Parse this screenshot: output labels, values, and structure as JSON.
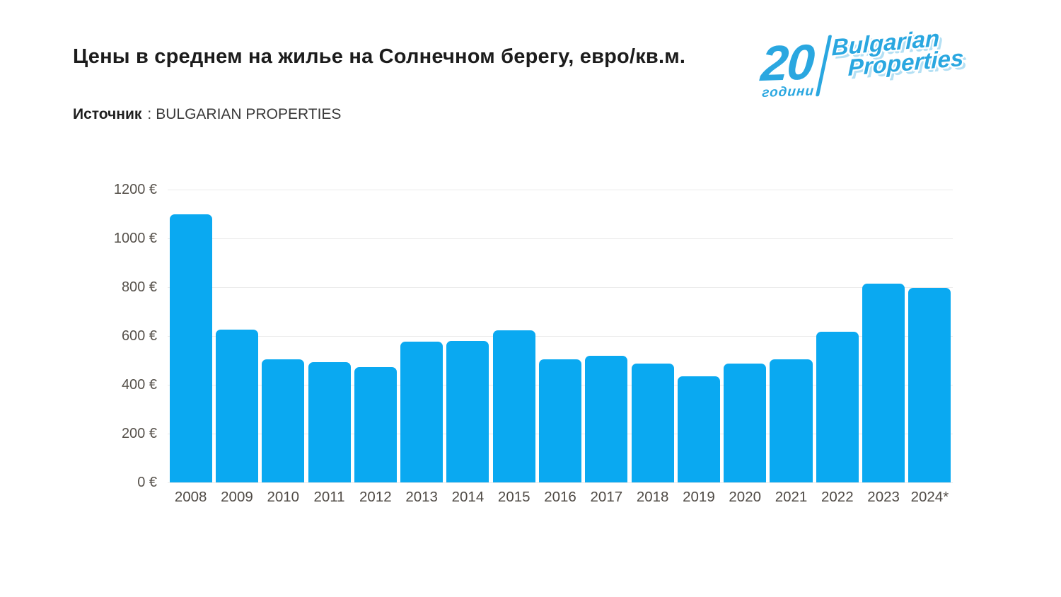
{
  "header": {
    "title": "Цены в среднем на жилье на Солнечном берегу, евро/кв.м.",
    "source_label": "Источник",
    "source_separator": ":",
    "source_value": "BULGARIAN PROPERTIES"
  },
  "logo": {
    "anniversary_number": "20",
    "anniversary_word": "години",
    "brand_line1": "Bulgarian",
    "brand_line2": "Properties",
    "color": "#2aa7e0"
  },
  "chart_data": {
    "type": "bar",
    "title": "Цены в среднем на жилье на Солнечном берегу, евро/кв.м.",
    "source": "BULGARIAN PROPERTIES",
    "categories": [
      "2008",
      "2009",
      "2010",
      "2011",
      "2012",
      "2013",
      "2014",
      "2015",
      "2016",
      "2017",
      "2018",
      "2019",
      "2020",
      "2021",
      "2022",
      "2023",
      "2024*"
    ],
    "values": [
      1100,
      625,
      505,
      492,
      472,
      578,
      580,
      622,
      503,
      520,
      488,
      435,
      488,
      505,
      617,
      815,
      797
    ],
    "ylim": [
      0,
      1200
    ],
    "ytick_step": 200,
    "ytick_labels": [
      "1200 €",
      "1000 €",
      "800 €",
      "600 €",
      "400 €",
      "200 €",
      "0 €"
    ],
    "xlabel": "",
    "ylabel": "",
    "grid": true,
    "legend_position": "none",
    "bar_color": "#0aa9f1",
    "grid_color": "#ebebeb"
  }
}
